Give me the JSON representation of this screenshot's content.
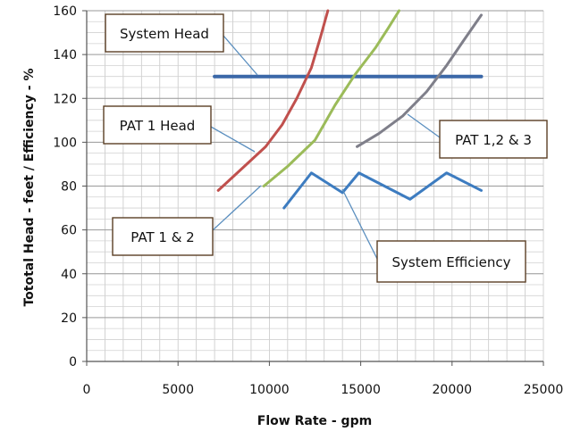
{
  "chart_data": {
    "type": "line",
    "xlabel": "Flow Rate - gpm",
    "ylabel": "Tototal Head - feet / Efficiency - %",
    "xlim": [
      0,
      25000
    ],
    "ylim": [
      0,
      160
    ],
    "xticks": [
      0,
      5000,
      10000,
      15000,
      20000,
      25000
    ],
    "yticks": [
      0,
      20,
      40,
      60,
      80,
      100,
      120,
      140,
      160
    ],
    "grid": true,
    "series": [
      {
        "color": "#3b68a8",
        "width": 4,
        "x": [
          7000,
          21600
        ],
        "y": [
          130,
          130
        ]
      },
      {
        "color": "#c0504d",
        "width": 3,
        "x": [
          7200,
          8500,
          9800,
          10700,
          11500,
          12300,
          12800,
          13200
        ],
        "y": [
          78,
          88,
          98,
          108,
          120,
          134,
          148,
          160
        ]
      },
      {
        "color": "#9bbb59",
        "width": 3,
        "x": [
          9700,
          11000,
          12500,
          13600,
          14700,
          15800,
          16500,
          17100
        ],
        "y": [
          80,
          89,
          101,
          117,
          131,
          143,
          152,
          160
        ]
      },
      {
        "color": "#7f7f8a",
        "width": 3,
        "x": [
          14800,
          16000,
          17300,
          18600,
          19700,
          20600,
          21600
        ],
        "y": [
          98,
          104,
          112,
          123,
          135,
          146,
          158
        ]
      },
      {
        "color": "#3d7cc0",
        "width": 3,
        "x": [
          10800,
          12300,
          14000,
          14900,
          17700,
          19700,
          21600
        ],
        "y": [
          70,
          86,
          77,
          86,
          74,
          86,
          78
        ]
      }
    ],
    "annotations": [
      {
        "text": "System Head"
      },
      {
        "text": "PAT 1 Head"
      },
      {
        "text": "PAT 1 & 2"
      },
      {
        "text": "PAT 1,2 & 3"
      },
      {
        "text": "System Efficiency"
      }
    ]
  }
}
